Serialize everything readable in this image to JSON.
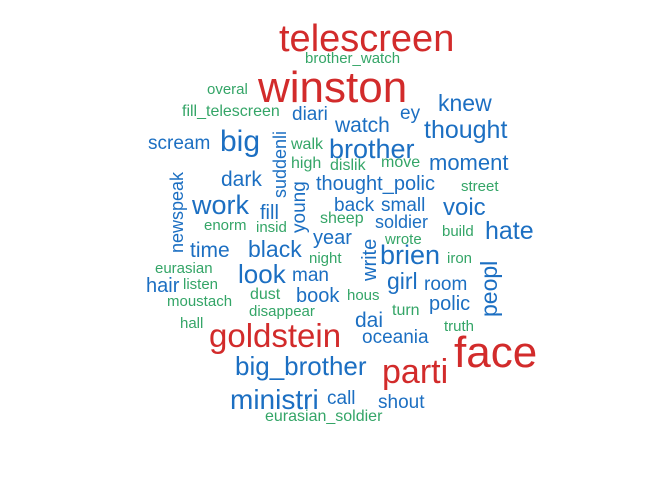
{
  "wordcloud": {
    "colors": {
      "high": "#d22b2b",
      "mid": "#1c6fc2",
      "low": "#34a567"
    },
    "words": {
      "telescreen": "telescreen",
      "brother_watch": "brother_watch",
      "winston": "winston",
      "overal": "overal",
      "knew": "knew",
      "fill_telescreen": "fill_telescreen",
      "diari": "diari",
      "ey": "ey",
      "watch": "watch",
      "thought": "thought",
      "scream": "scream",
      "big": "big",
      "suddenli": "suddenli",
      "walk": "walk",
      "brother": "brother",
      "high": "high",
      "dislik": "dislik",
      "move": "move",
      "moment": "moment",
      "newspeak": "newspeak",
      "dark": "dark",
      "thought_polic": "thought_polic",
      "street": "street",
      "work": "work",
      "fill": "fill",
      "young": "young",
      "back": "back",
      "small": "small",
      "voic": "voic",
      "enorm": "enorm",
      "insid": "insid",
      "sheep": "sheep",
      "soldier": "soldier",
      "build": "build",
      "hate": "hate",
      "year": "year",
      "wrote": "wrote",
      "time": "time",
      "black": "black",
      "write": "write",
      "brien": "brien",
      "night": "night",
      "iron": "iron",
      "eurasian": "eurasian",
      "peopl": "peopl",
      "look": "look",
      "man": "man",
      "hair": "hair",
      "listen": "listen",
      "girl": "girl",
      "room": "room",
      "book": "book",
      "dust": "dust",
      "hous": "hous",
      "moustach": "moustach",
      "disappear": "disappear",
      "polic": "polic",
      "turn": "turn",
      "dai": "dai",
      "hall": "hall",
      "truth": "truth",
      "goldstein": "goldstein",
      "oceania": "oceania",
      "face": "face",
      "big_brother": "big_brother",
      "parti": "parti",
      "ministri": "ministri",
      "call": "call",
      "shout": "shout",
      "eurasian_soldier": "eurasian_soldier"
    }
  }
}
